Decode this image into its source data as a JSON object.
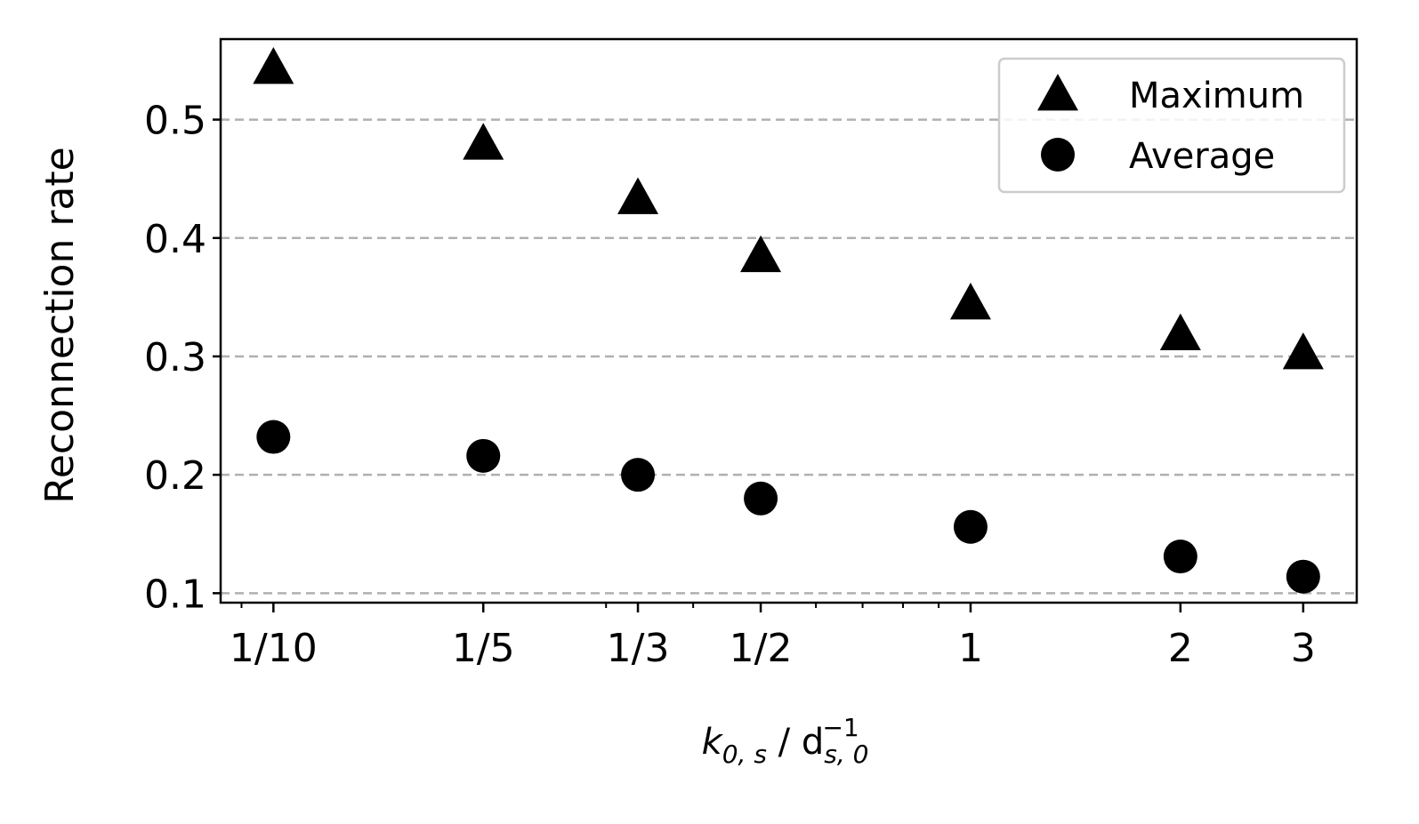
{
  "chart_data": {
    "type": "scatter",
    "ylabel": "Reconnection rate",
    "xlabel": [
      {
        "text": "k",
        "style": "italic"
      },
      {
        "text": "0, s",
        "style": "italic-sub"
      },
      {
        "text": " / d",
        "style": "normal"
      },
      {
        "text": "s, 0",
        "style": "italic-sub"
      },
      {
        "text": "−1",
        "style": "sup"
      }
    ],
    "x": [
      0.1,
      0.2,
      0.3333,
      0.5,
      1,
      2,
      3
    ],
    "series": [
      {
        "name": "Maximum",
        "marker": "triangle",
        "color": "#000000",
        "values": [
          0.544,
          0.48,
          0.434,
          0.385,
          0.345,
          0.319,
          0.303
        ]
      },
      {
        "name": "Average",
        "marker": "circle",
        "color": "#000000",
        "values": [
          0.232,
          0.216,
          0.2,
          0.18,
          0.156,
          0.131,
          0.114
        ]
      }
    ],
    "xscale": "log",
    "xlim": [
      0.084,
      3.58
    ],
    "ylim": [
      0.092,
      0.568
    ],
    "xticks": [
      {
        "value": 0.1,
        "label": "1/10"
      },
      {
        "value": 0.2,
        "label": "1/5"
      },
      {
        "value": 0.3333,
        "label": "1/3"
      },
      {
        "value": 0.5,
        "label": "1/2"
      },
      1,
      2,
      3
    ],
    "xminorticks": [
      0.09,
      0.3,
      0.4,
      0.6,
      0.7,
      0.8,
      0.9
    ],
    "yticks": [
      0.1,
      0.2,
      0.3,
      0.4,
      0.5
    ],
    "grid": "y-dashed",
    "legend": "upper right"
  }
}
